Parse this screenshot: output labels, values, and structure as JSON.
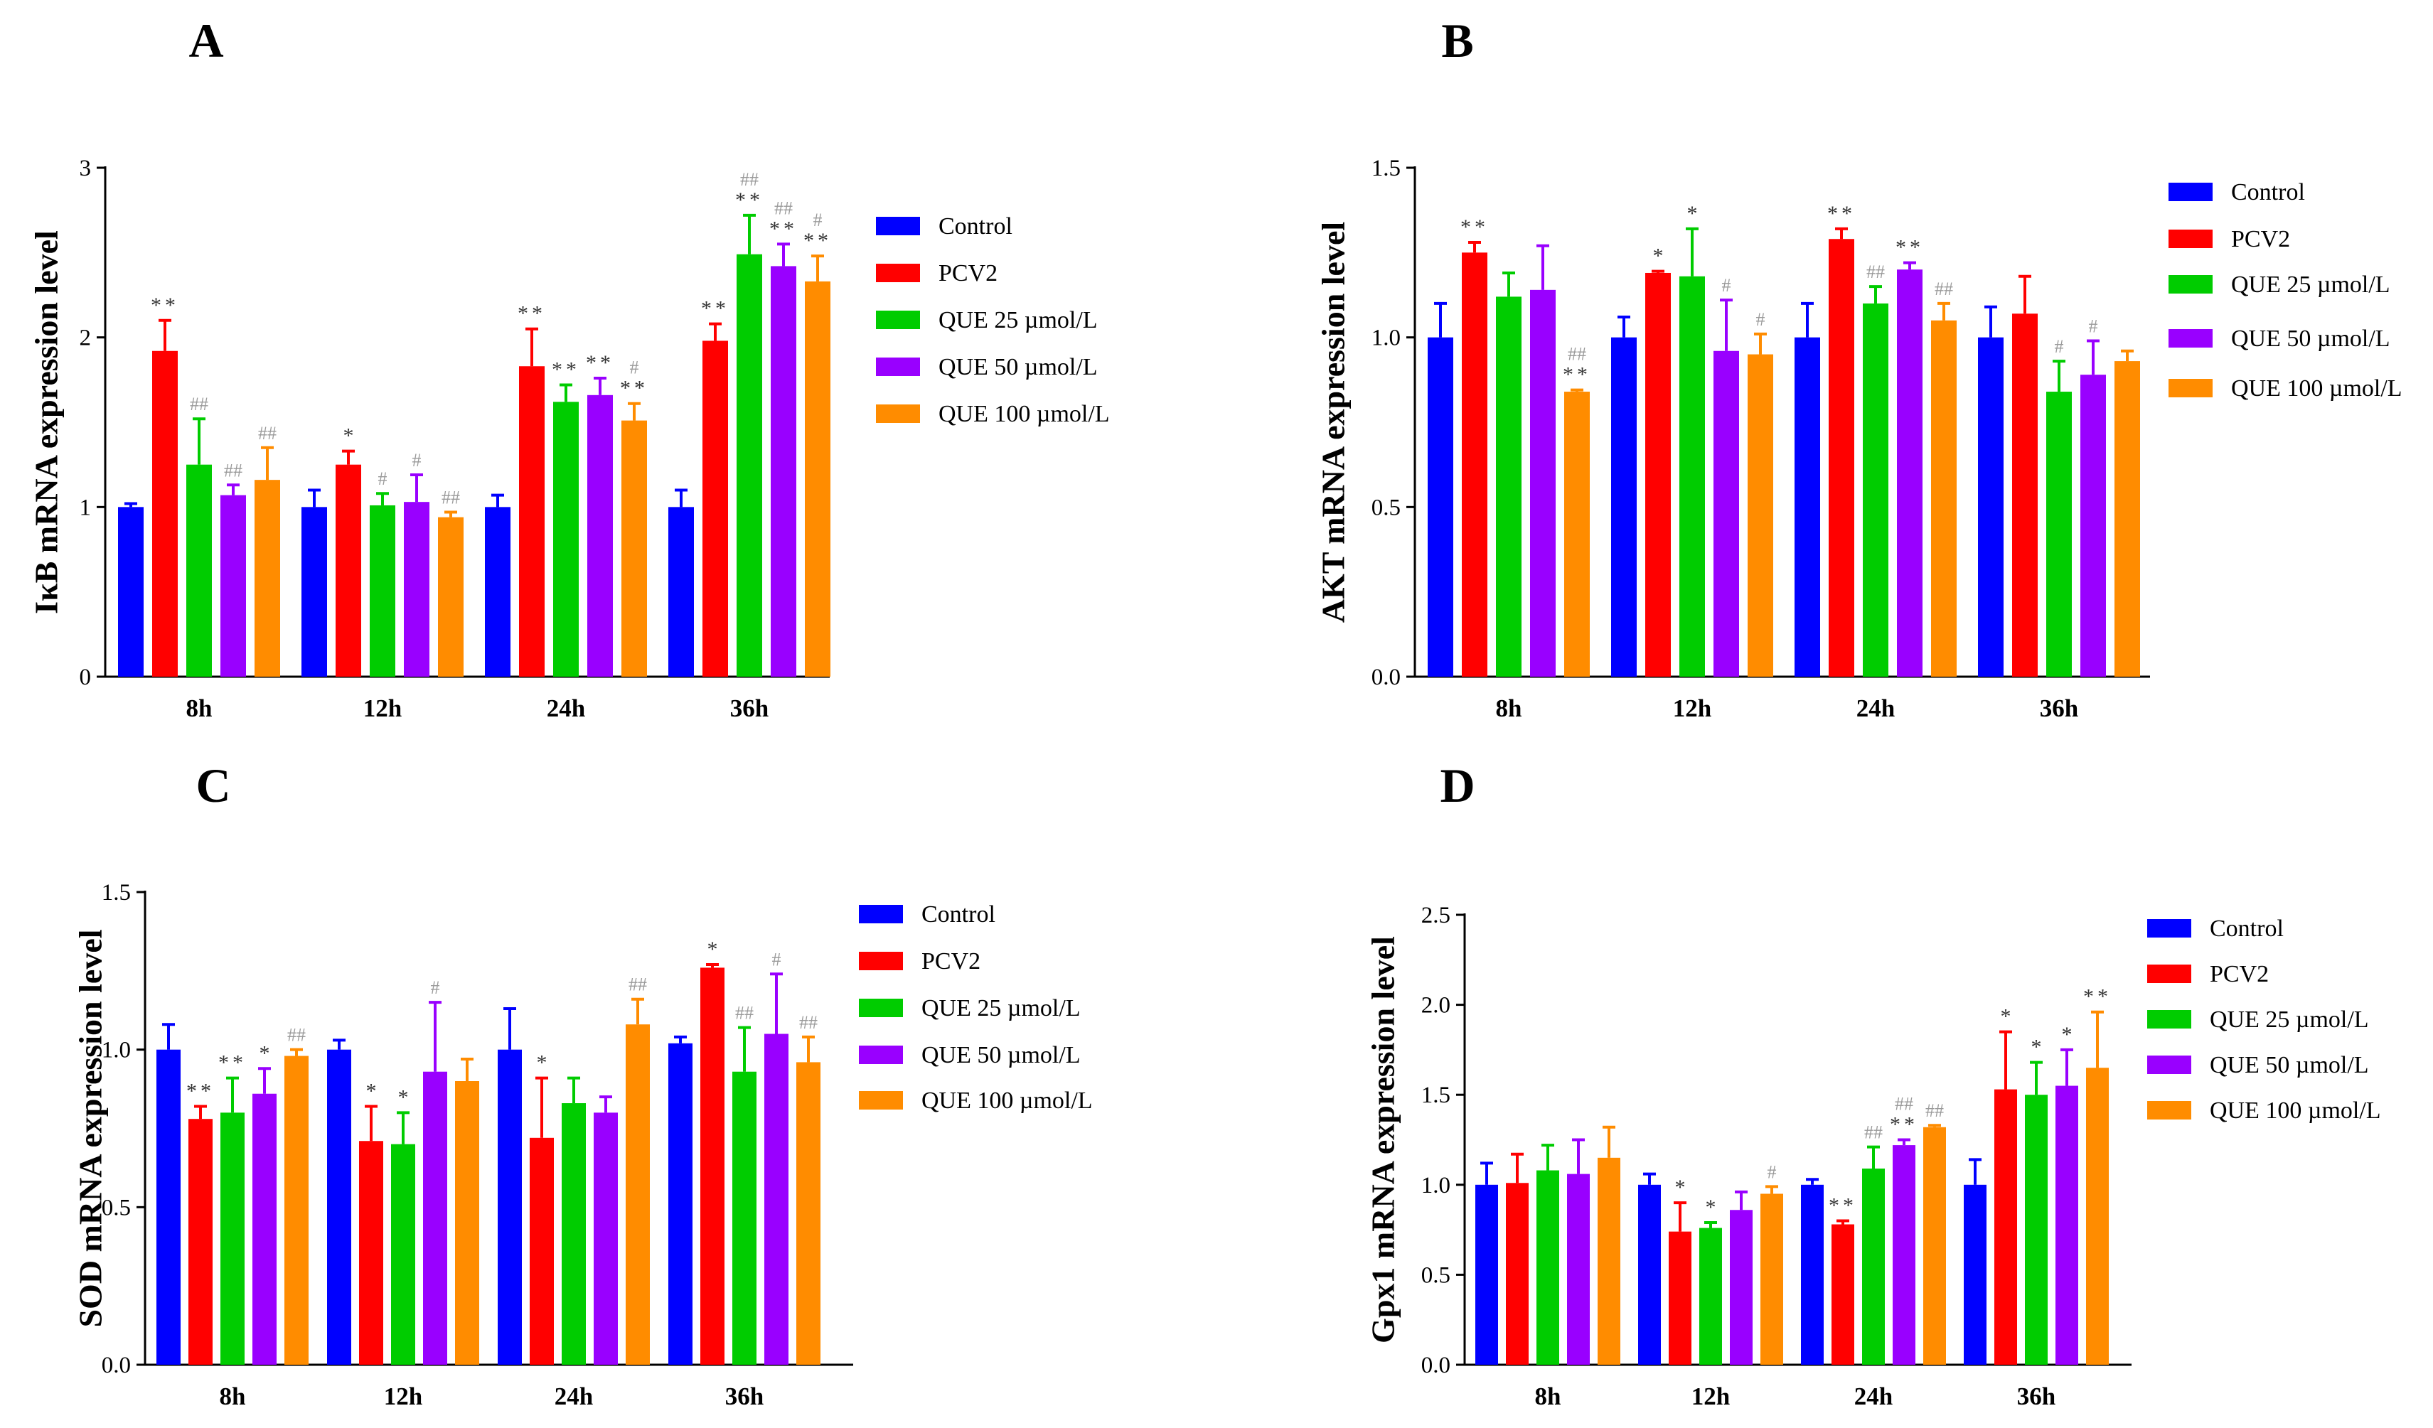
{
  "chart_data": [
    {
      "panel": "A",
      "type": "bar",
      "ylabel": "IκB mRNA expression level",
      "categories": [
        "8h",
        "12h",
        "24h",
        "36h"
      ],
      "ylim": [
        0,
        3
      ],
      "yticks": [
        "0",
        "1",
        "2",
        "3"
      ],
      "series": [
        {
          "name": "Control",
          "color": "#0000ff",
          "values": [
            1.0,
            1.0,
            1.0,
            1.0
          ],
          "errors": [
            0.02,
            0.1,
            0.07,
            0.1
          ],
          "annotations": [
            [],
            [],
            [],
            []
          ]
        },
        {
          "name": "PCV2",
          "color": "#ff0000",
          "values": [
            1.92,
            1.25,
            1.83,
            1.98
          ],
          "errors": [
            0.18,
            0.08,
            0.22,
            0.1
          ],
          "annotations": [
            [
              "**"
            ],
            [
              "*"
            ],
            [
              "**"
            ],
            [
              "**"
            ]
          ]
        },
        {
          "name": "QUE 25 µmol/L",
          "color": "#00cc00",
          "values": [
            1.25,
            1.01,
            1.62,
            2.49
          ],
          "errors": [
            0.27,
            0.07,
            0.1,
            0.23
          ],
          "annotations": [
            [
              "##"
            ],
            [
              "#"
            ],
            [
              "**"
            ],
            [
              "**",
              "##"
            ]
          ]
        },
        {
          "name": "QUE 50 µmol/L",
          "color": "#9900ff",
          "values": [
            1.07,
            1.03,
            1.66,
            2.42
          ],
          "errors": [
            0.06,
            0.16,
            0.1,
            0.13
          ],
          "annotations": [
            [
              "##"
            ],
            [
              "#"
            ],
            [
              "**"
            ],
            [
              "**",
              "##"
            ]
          ]
        },
        {
          "name": "QUE 100 µmol/L",
          "color": "#ff8c00",
          "values": [
            1.16,
            0.94,
            1.51,
            2.33
          ],
          "errors": [
            0.19,
            0.03,
            0.1,
            0.15
          ],
          "annotations": [
            [
              "##"
            ],
            [
              "##"
            ],
            [
              "**",
              "#"
            ],
            [
              "**",
              "#"
            ]
          ]
        }
      ]
    },
    {
      "panel": "B",
      "type": "bar",
      "ylabel": "AKT mRNA expression level",
      "categories": [
        "8h",
        "12h",
        "24h",
        "36h"
      ],
      "ylim": [
        0,
        1.5
      ],
      "yticks": [
        "0.0",
        "0.5",
        "1.0",
        "1.5"
      ],
      "series": [
        {
          "name": "Control",
          "color": "#0000ff",
          "values": [
            1.0,
            1.0,
            1.0,
            1.0
          ],
          "errors": [
            0.1,
            0.06,
            0.1,
            0.09
          ],
          "annotations": [
            [],
            [],
            [],
            []
          ]
        },
        {
          "name": "PCV2",
          "color": "#ff0000",
          "values": [
            1.25,
            1.19,
            1.29,
            1.07
          ],
          "errors": [
            0.03,
            0.005,
            0.03,
            0.11
          ],
          "annotations": [
            [
              "**"
            ],
            [
              "*"
            ],
            [
              "**"
            ],
            []
          ]
        },
        {
          "name": "QUE 25 µmol/L",
          "color": "#00cc00",
          "values": [
            1.12,
            1.18,
            1.1,
            0.84
          ],
          "errors": [
            0.07,
            0.14,
            0.05,
            0.09
          ],
          "annotations": [
            [],
            [
              "*"
            ],
            [
              "##"
            ],
            [
              "#"
            ]
          ]
        },
        {
          "name": "QUE 50 µmol/L",
          "color": "#9900ff",
          "values": [
            1.14,
            0.96,
            1.2,
            0.89
          ],
          "errors": [
            0.13,
            0.15,
            0.02,
            0.1
          ],
          "annotations": [
            [],
            [
              "#"
            ],
            [
              "**"
            ],
            [
              "#"
            ]
          ]
        },
        {
          "name": "QUE 100 µmol/L",
          "color": "#ff8c00",
          "values": [
            0.84,
            0.95,
            1.05,
            0.93
          ],
          "errors": [
            0.005,
            0.06,
            0.05,
            0.03
          ],
          "annotations": [
            [
              "**",
              "##"
            ],
            [
              "#"
            ],
            [
              "##"
            ],
            []
          ]
        }
      ]
    },
    {
      "panel": "C",
      "type": "bar",
      "ylabel": "SOD mRNA expression level",
      "categories": [
        "8h",
        "12h",
        "24h",
        "36h"
      ],
      "ylim": [
        0,
        1.5
      ],
      "yticks": [
        "0.0",
        "0.5",
        "1.0",
        "1.5"
      ],
      "series": [
        {
          "name": "Control",
          "color": "#0000ff",
          "values": [
            1.0,
            1.0,
            1.0,
            1.02
          ],
          "errors": [
            0.08,
            0.03,
            0.13,
            0.02
          ],
          "annotations": [
            [],
            [],
            [],
            []
          ]
        },
        {
          "name": "PCV2",
          "color": "#ff0000",
          "values": [
            0.78,
            0.71,
            0.72,
            1.26
          ],
          "errors": [
            0.04,
            0.11,
            0.19,
            0.01
          ],
          "annotations": [
            [
              "**"
            ],
            [
              "*"
            ],
            [
              "*"
            ],
            [
              "*"
            ]
          ]
        },
        {
          "name": "QUE 25 µmol/L",
          "color": "#00cc00",
          "values": [
            0.8,
            0.7,
            0.83,
            0.93
          ],
          "errors": [
            0.11,
            0.1,
            0.08,
            0.14
          ],
          "annotations": [
            [
              "**"
            ],
            [
              "*"
            ],
            [],
            [
              "##"
            ]
          ]
        },
        {
          "name": "QUE 50 µmol/L",
          "color": "#9900ff",
          "values": [
            0.86,
            0.93,
            0.8,
            1.05
          ],
          "errors": [
            0.08,
            0.22,
            0.05,
            0.19
          ],
          "annotations": [
            [
              "*"
            ],
            [
              "#"
            ],
            [],
            [
              "#"
            ]
          ]
        },
        {
          "name": "QUE 100 µmol/L",
          "color": "#ff8c00",
          "values": [
            0.98,
            0.9,
            1.08,
            0.96
          ],
          "errors": [
            0.02,
            0.07,
            0.08,
            0.08
          ],
          "annotations": [
            [
              "##"
            ],
            [],
            [
              "##"
            ],
            [
              "##"
            ]
          ]
        }
      ]
    },
    {
      "panel": "D",
      "type": "bar",
      "ylabel": "Gpx1 mRNA expression level",
      "categories": [
        "8h",
        "12h",
        "24h",
        "36h"
      ],
      "ylim": [
        0,
        2.5
      ],
      "yticks": [
        "0.0",
        "0.5",
        "1.0",
        "1.5",
        "2.0",
        "2.5"
      ],
      "series": [
        {
          "name": "Control",
          "color": "#0000ff",
          "values": [
            1.0,
            1.0,
            1.0,
            1.0
          ],
          "errors": [
            0.12,
            0.06,
            0.03,
            0.14
          ],
          "annotations": [
            [],
            [],
            [],
            []
          ]
        },
        {
          "name": "PCV2",
          "color": "#ff0000",
          "values": [
            1.01,
            0.74,
            0.78,
            1.53
          ],
          "errors": [
            0.16,
            0.16,
            0.02,
            0.32
          ],
          "annotations": [
            [],
            [
              "*"
            ],
            [
              "**"
            ],
            [
              "*"
            ]
          ]
        },
        {
          "name": "QUE 25 µmol/L",
          "color": "#00cc00",
          "values": [
            1.08,
            0.76,
            1.09,
            1.5
          ],
          "errors": [
            0.14,
            0.03,
            0.12,
            0.18
          ],
          "annotations": [
            [],
            [
              "*"
            ],
            [
              "##"
            ],
            [
              "*"
            ]
          ]
        },
        {
          "name": "QUE 50 µmol/L",
          "color": "#9900ff",
          "values": [
            1.06,
            0.86,
            1.22,
            1.55
          ],
          "errors": [
            0.19,
            0.1,
            0.03,
            0.2
          ],
          "annotations": [
            [],
            [],
            [
              "**",
              "##"
            ],
            [
              "*"
            ]
          ]
        },
        {
          "name": "QUE 100 µmol/L",
          "color": "#ff8c00",
          "values": [
            1.15,
            0.95,
            1.32,
            1.65
          ],
          "errors": [
            0.17,
            0.04,
            0.01,
            0.31
          ],
          "annotations": [
            [],
            [
              "#"
            ],
            [
              "##"
            ],
            [
              "**"
            ]
          ]
        }
      ]
    }
  ]
}
